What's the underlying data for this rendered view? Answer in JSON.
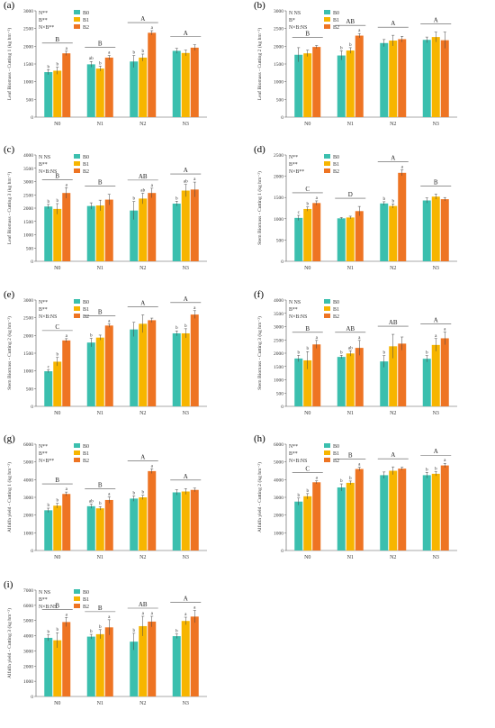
{
  "colors": {
    "B0": "#3bbfae",
    "B1": "#f7b500",
    "B2": "#ee7423"
  },
  "chart_data": [
    {
      "type": "bar",
      "panel": "(a)",
      "ylabel": "Leaf Biomass - Cutting 1 (kg hm⁻²)",
      "ylim": [
        0,
        3000
      ],
      "yticks": [
        0,
        500,
        1000,
        1500,
        2000,
        2500,
        3000
      ],
      "categories": [
        "N0",
        "N1",
        "N2",
        "N3"
      ],
      "legend": [
        "B0",
        "B1",
        "B2"
      ],
      "stats": [
        "N**",
        "B**",
        "N×B**"
      ],
      "series": [
        {
          "name": "B0",
          "values": [
            1270,
            1490,
            1570,
            1870
          ],
          "errors": [
            70,
            80,
            170,
            70
          ],
          "letters": [
            "b",
            "ab",
            "b",
            ""
          ]
        },
        {
          "name": "B1",
          "values": [
            1310,
            1370,
            1680,
            1810
          ],
          "errors": [
            100,
            70,
            100,
            80
          ],
          "letters": [
            "b",
            "b",
            "b",
            ""
          ]
        },
        {
          "name": "B2",
          "values": [
            1800,
            1680,
            2380,
            1960
          ],
          "errors": [
            60,
            60,
            60,
            80
          ],
          "letters": [
            "a",
            "a",
            "a",
            ""
          ]
        }
      ],
      "group_letters": [
        "B",
        "B",
        "A",
        "A"
      ]
    },
    {
      "type": "bar",
      "panel": "(b)",
      "ylabel": "Leaf Biomass - Cutting 2 (kg hm⁻²)",
      "ylim": [
        0,
        3000
      ],
      "yticks": [
        0,
        500,
        1000,
        1500,
        2000,
        2500,
        3000
      ],
      "categories": [
        "N0",
        "N1",
        "N2",
        "N3"
      ],
      "legend": [
        "B0",
        "B1",
        "B2"
      ],
      "stats": [
        "N NS",
        "B*",
        "N×B:NS"
      ],
      "series": [
        {
          "name": "B0",
          "values": [
            1760,
            1740,
            2090,
            2180
          ],
          "errors": [
            200,
            130,
            100,
            80
          ],
          "letters": [
            "",
            "b",
            "",
            ""
          ]
        },
        {
          "name": "B1",
          "values": [
            1800,
            1880,
            2160,
            2260
          ],
          "errors": [
            90,
            80,
            150,
            140
          ],
          "letters": [
            "",
            "b",
            "",
            ""
          ]
        },
        {
          "name": "B2",
          "values": [
            1980,
            2300,
            2200,
            2170
          ],
          "errors": [
            40,
            60,
            80,
            230
          ],
          "letters": [
            "",
            "a",
            "",
            ""
          ]
        }
      ],
      "group_letters": [
        "B",
        "AB",
        "A",
        "A"
      ]
    },
    {
      "type": "bar",
      "panel": "(c)",
      "ylabel": "Leaf Biomass - Cutting 3 (kg hm⁻²)",
      "ylim": [
        0,
        4000
      ],
      "yticks": [
        0,
        500,
        1000,
        1500,
        2000,
        2500,
        3000,
        3500,
        4000
      ],
      "categories": [
        "N0",
        "N1",
        "N2",
        "N3"
      ],
      "legend": [
        "B0",
        "B1",
        "B2"
      ],
      "stats": [
        "N NS",
        "B**",
        "N×B:NS"
      ],
      "series": [
        {
          "name": "B0",
          "values": [
            2060,
            2080,
            1910,
            2170
          ],
          "errors": [
            80,
            120,
            340,
            90
          ],
          "letters": [
            "b",
            "",
            "b",
            "b"
          ]
        },
        {
          "name": "B1",
          "values": [
            1970,
            2100,
            2360,
            2660
          ],
          "errors": [
            200,
            200,
            200,
            230
          ],
          "letters": [
            "b",
            "",
            "ab",
            "ab"
          ]
        },
        {
          "name": "B2",
          "values": [
            2570,
            2320,
            2570,
            2700
          ],
          "errors": [
            200,
            200,
            180,
            280
          ],
          "letters": [
            "a",
            "",
            "a",
            "a"
          ]
        }
      ],
      "group_letters": [
        "B",
        "B",
        "AB",
        "A"
      ]
    },
    {
      "type": "bar",
      "panel": "(d)",
      "ylabel": "Stem Biomass - Cutting 1 (kg hm⁻²)",
      "ylim": [
        0,
        2500
      ],
      "yticks": [
        0,
        500,
        1000,
        1500,
        2000,
        2500
      ],
      "categories": [
        "N0",
        "N1",
        "N2",
        "N3"
      ],
      "legend": [
        "B0",
        "B1",
        "B2"
      ],
      "stats": [
        "N**",
        "B**",
        "N×B**"
      ],
      "series": [
        {
          "name": "B0",
          "values": [
            1020,
            1010,
            1360,
            1430
          ],
          "errors": [
            60,
            20,
            40,
            60
          ],
          "letters": [
            "c",
            "",
            "b",
            ""
          ]
        },
        {
          "name": "B1",
          "values": [
            1230,
            1030,
            1300,
            1520
          ],
          "errors": [
            50,
            30,
            50,
            60
          ],
          "letters": [
            "b",
            "",
            "b",
            ""
          ]
        },
        {
          "name": "B2",
          "values": [
            1370,
            1180,
            2080,
            1460
          ],
          "errors": [
            50,
            110,
            70,
            40
          ],
          "letters": [
            "a",
            "",
            "a",
            ""
          ]
        }
      ],
      "group_letters": [
        "C",
        "D",
        "A",
        "B"
      ]
    },
    {
      "type": "bar",
      "panel": "(e)",
      "ylabel": "Stem Biomass - Cutting 2 (kg hm⁻²)",
      "ylim": [
        0,
        3000
      ],
      "yticks": [
        0,
        500,
        1000,
        1500,
        2000,
        2500,
        3000
      ],
      "categories": [
        "N0",
        "N1",
        "N2",
        "N3"
      ],
      "legend": [
        "B0",
        "B1",
        "B2"
      ],
      "stats": [
        "N**",
        "B**",
        "N×B:NS"
      ],
      "series": [
        {
          "name": "B0",
          "values": [
            990,
            1800,
            2170,
            2060
          ],
          "errors": [
            40,
            120,
            200,
            70
          ],
          "letters": [
            "c",
            "b",
            "",
            "b"
          ]
        },
        {
          "name": "B1",
          "values": [
            1260,
            1940,
            2330,
            2060
          ],
          "errors": [
            120,
            70,
            250,
            130
          ],
          "letters": [
            "b",
            "",
            "",
            "b"
          ]
        },
        {
          "name": "B2",
          "values": [
            1860,
            2280,
            2430,
            2590
          ],
          "errors": [
            50,
            50,
            60,
            110
          ],
          "letters": [
            "a",
            "a",
            "",
            "a"
          ]
        }
      ],
      "group_letters": [
        "C",
        "B",
        "A",
        "A"
      ]
    },
    {
      "type": "bar",
      "panel": "(f)",
      "ylabel": "Stem Biomass - Cutting 3 (kg hm⁻²)",
      "ylim": [
        0,
        4000
      ],
      "yticks": [
        0,
        500,
        1000,
        1500,
        2000,
        2500,
        3000,
        3500,
        4000
      ],
      "categories": [
        "N0",
        "N1",
        "N2",
        "N3"
      ],
      "legend": [
        "B0",
        "B1",
        "B2"
      ],
      "stats": [
        "N NS",
        "B**",
        "N×B:NS"
      ],
      "series": [
        {
          "name": "B0",
          "values": [
            1800,
            1860,
            1690,
            1790
          ],
          "errors": [
            120,
            60,
            220,
            120
          ],
          "letters": [
            "b",
            "b",
            "b",
            "b"
          ]
        },
        {
          "name": "B1",
          "values": [
            1730,
            1990,
            2260,
            2310
          ],
          "errors": [
            330,
            100,
            450,
            240
          ],
          "letters": [
            "b",
            "ab",
            "",
            "a"
          ]
        },
        {
          "name": "B2",
          "values": [
            2330,
            2200,
            2360,
            2560
          ],
          "errors": [
            150,
            280,
            250,
            240
          ],
          "letters": [
            "a",
            "a",
            "",
            "a"
          ]
        }
      ],
      "group_letters": [
        "B",
        "AB",
        "AB",
        "A"
      ]
    },
    {
      "type": "bar",
      "panel": "(g)",
      "ylabel": "Alfalfa yield - Cutting 1 (kg hm⁻²)",
      "ylim": [
        0,
        6000
      ],
      "yticks": [
        0,
        1000,
        2000,
        3000,
        4000,
        5000,
        6000
      ],
      "categories": [
        "N0",
        "N1",
        "N2",
        "N3"
      ],
      "legend": [
        "B0",
        "B1",
        "B2"
      ],
      "stats": [
        "N**",
        "B**",
        "N×B**"
      ],
      "series": [
        {
          "name": "B0",
          "values": [
            2270,
            2500,
            2930,
            3280
          ],
          "errors": [
            120,
            120,
            150,
            150
          ],
          "letters": [
            "b",
            "ab",
            "b",
            ""
          ]
        },
        {
          "name": "B1",
          "values": [
            2530,
            2380,
            3000,
            3330
          ],
          "errors": [
            130,
            100,
            120,
            160
          ],
          "letters": [
            "b",
            "b",
            "b",
            ""
          ]
        },
        {
          "name": "B2",
          "values": [
            3190,
            2850,
            4480,
            3420
          ],
          "errors": [
            110,
            180,
            130,
            100
          ],
          "letters": [
            "a",
            "a",
            "a",
            ""
          ]
        }
      ],
      "group_letters": [
        "B",
        "B",
        "A",
        "A"
      ]
    },
    {
      "type": "bar",
      "panel": "(h)",
      "ylabel": "Alfalfa yield - Cutting 2 (kg hm⁻²)",
      "ylim": [
        0,
        6000
      ],
      "yticks": [
        0,
        1000,
        2000,
        3000,
        4000,
        5000,
        6000
      ],
      "categories": [
        "N0",
        "N1",
        "N2",
        "N3"
      ],
      "legend": [
        "B0",
        "B1",
        "B2"
      ],
      "stats": [
        "N**",
        "B**",
        "N×B:NS"
      ],
      "series": [
        {
          "name": "B0",
          "values": [
            2760,
            3560,
            4250,
            4250
          ],
          "errors": [
            200,
            200,
            180,
            160
          ],
          "letters": [
            "b",
            "b",
            "",
            "b"
          ]
        },
        {
          "name": "B1",
          "values": [
            3060,
            3820,
            4500,
            4330
          ],
          "errors": [
            150,
            100,
            220,
            120
          ],
          "letters": [
            "b",
            "b",
            "",
            "b"
          ]
        },
        {
          "name": "B2",
          "values": [
            3850,
            4600,
            4620,
            4800
          ],
          "errors": [
            80,
            100,
            80,
            120
          ],
          "letters": [
            "a",
            "a",
            "",
            "a"
          ]
        }
      ],
      "group_letters": [
        "C",
        "B",
        "A",
        "A"
      ]
    },
    {
      "type": "bar",
      "panel": "(i)",
      "ylabel": "Alfalfa yield - Cutting 3 (kg hm⁻²)",
      "ylim": [
        0,
        7000
      ],
      "yticks": [
        0,
        1000,
        2000,
        3000,
        4000,
        5000,
        6000,
        7000
      ],
      "categories": [
        "N0",
        "N1",
        "N2",
        "N3"
      ],
      "legend": [
        "B0",
        "B1",
        "B2"
      ],
      "stats": [
        "N NS",
        "B**",
        "N×B:NS"
      ],
      "series": [
        {
          "name": "B0",
          "values": [
            3860,
            3940,
            3610,
            3970
          ],
          "errors": [
            200,
            150,
            550,
            150
          ],
          "letters": [
            "b",
            "b",
            "b",
            "b"
          ]
        },
        {
          "name": "B1",
          "values": [
            3700,
            4100,
            4630,
            4970
          ],
          "errors": [
            500,
            300,
            650,
            250
          ],
          "letters": [
            "b",
            "b",
            "a",
            "a"
          ]
        },
        {
          "name": "B2",
          "values": [
            4900,
            4550,
            4930,
            5260
          ],
          "errors": [
            300,
            500,
            350,
            400
          ],
          "letters": [
            "a",
            "a",
            "a",
            "a"
          ]
        }
      ],
      "group_letters": [
        "B",
        "B",
        "AB",
        "A"
      ]
    }
  ]
}
